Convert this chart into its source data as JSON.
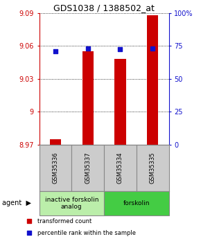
{
  "title": "GDS1038 / 1388502_at",
  "categories": [
    "GSM35336",
    "GSM35337",
    "GSM35334",
    "GSM35335"
  ],
  "bar_values": [
    8.975,
    9.055,
    9.048,
    9.088
  ],
  "bar_base": 8.97,
  "blue_values": [
    9.055,
    9.058,
    9.057,
    9.058
  ],
  "bar_color": "#cc0000",
  "blue_color": "#1111cc",
  "ylim": [
    8.97,
    9.09
  ],
  "yticks": [
    8.97,
    9.0,
    9.03,
    9.06,
    9.09
  ],
  "ytick_labels": [
    "8.97",
    "9",
    "9.03",
    "9.06",
    "9.09"
  ],
  "y2lim": [
    0,
    100
  ],
  "y2ticks": [
    0,
    25,
    50,
    75,
    100
  ],
  "y2tick_labels": [
    "0",
    "25",
    "50",
    "75",
    "100%"
  ],
  "agent_groups": [
    {
      "label": "inactive forskolin\nanalog",
      "span": [
        0,
        2
      ],
      "color": "#bbeeaa"
    },
    {
      "label": "forskolin",
      "span": [
        2,
        4
      ],
      "color": "#44cc44"
    }
  ],
  "legend_items": [
    {
      "label": "transformed count",
      "color": "#cc0000"
    },
    {
      "label": "percentile rank within the sample",
      "color": "#1111cc"
    }
  ],
  "agent_label": "agent",
  "bar_width": 0.35,
  "blue_marker_size": 5,
  "left_axis_color": "#cc0000",
  "right_axis_color": "#1111cc",
  "tick_fontsize": 7,
  "title_fontsize": 9
}
